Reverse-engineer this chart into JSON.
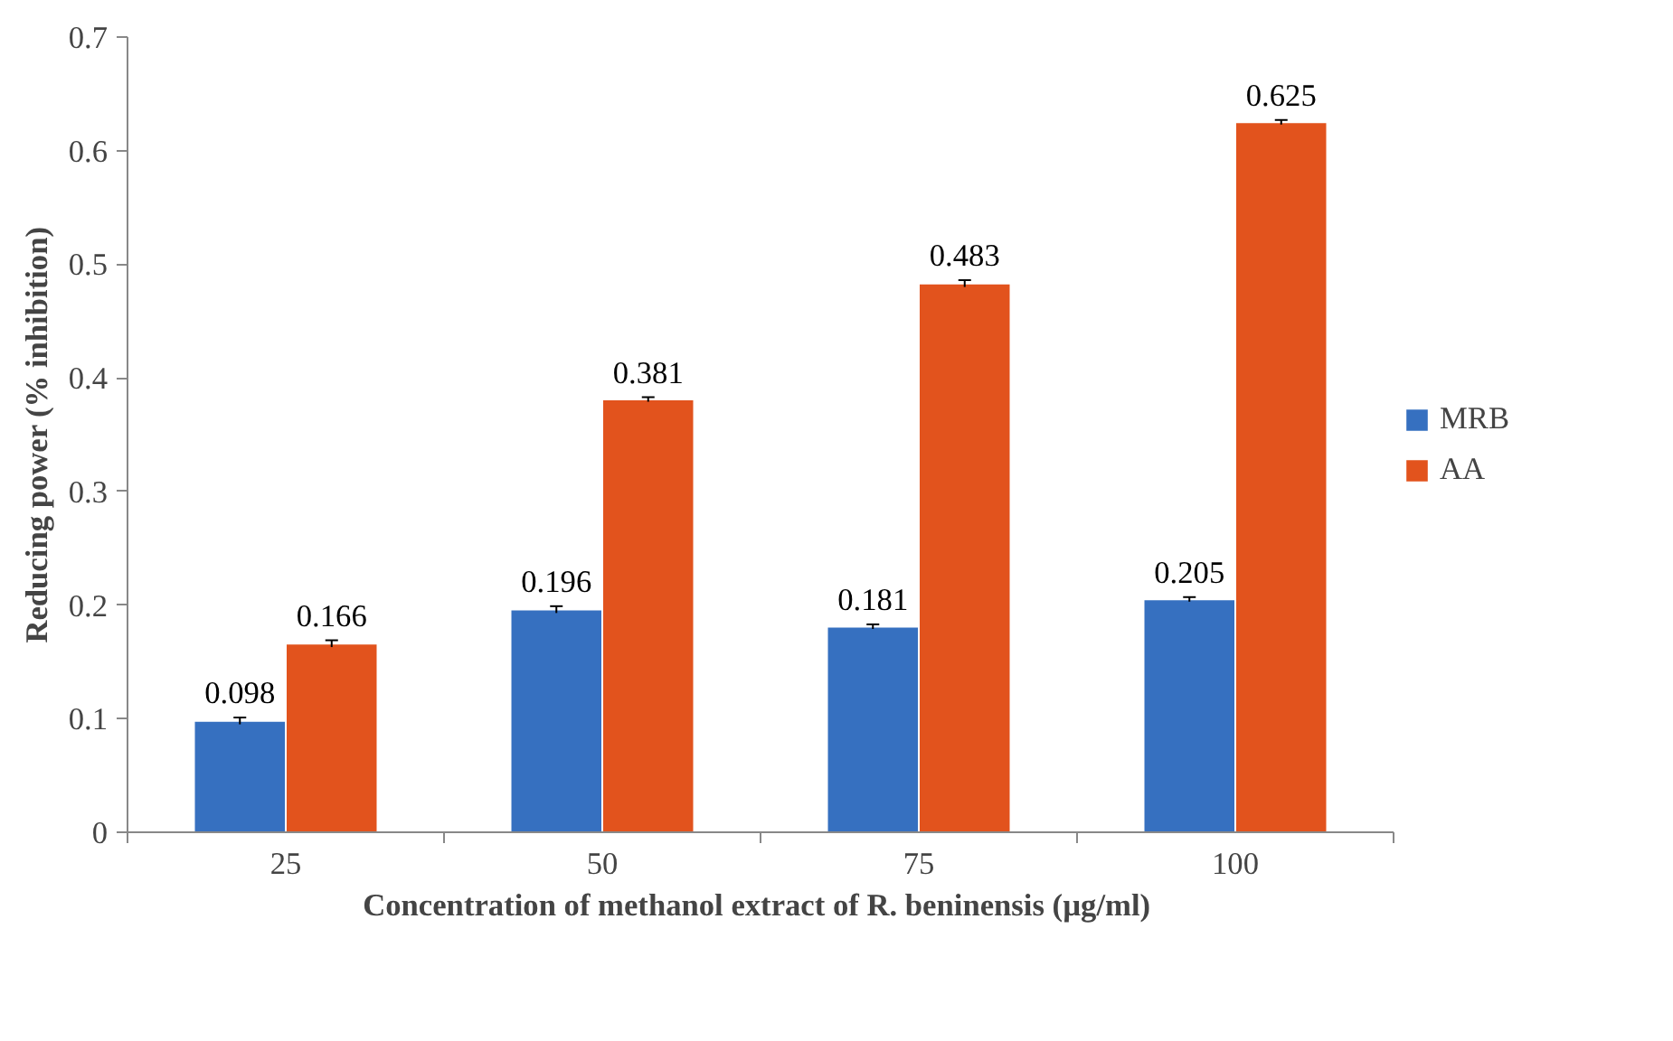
{
  "chart_data": {
    "type": "bar",
    "xlabel": "Concentration of methanol extract of R. beninensis  (µg/ml)",
    "ylabel": "Reducing power (% inhibition)",
    "categories": [
      "25",
      "50",
      "75",
      "100"
    ],
    "series": [
      {
        "name": "MRB",
        "color": "#3670c0",
        "values": [
          0.098,
          0.196,
          0.181,
          0.205
        ],
        "errors": [
          0.003,
          0.003,
          0.002,
          0.002
        ]
      },
      {
        "name": "AA",
        "color": "#e2531d",
        "values": [
          0.166,
          0.381,
          0.483,
          0.625
        ],
        "errors": [
          0.003,
          0.002,
          0.003,
          0.002
        ]
      }
    ],
    "ylim": [
      0,
      0.7
    ],
    "yticks": [
      {
        "value": 0,
        "label": "0"
      },
      0.1,
      0.2,
      0.3,
      0.4,
      0.5,
      0.6,
      0.7
    ],
    "grid": false,
    "legend": "right",
    "data_labels": true
  }
}
